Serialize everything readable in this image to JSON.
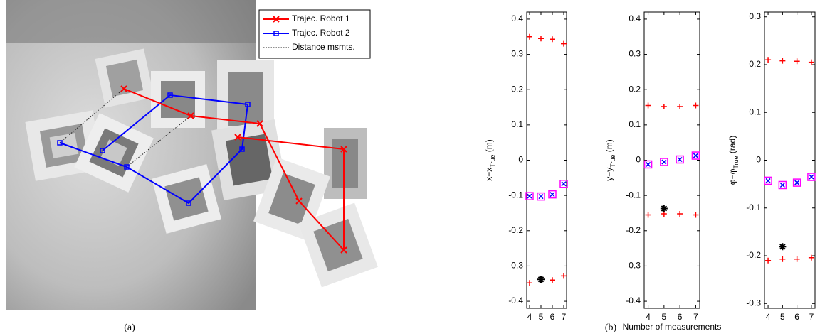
{
  "figure_a": {
    "legend": [
      "Trajec. Robot 1",
      "Trajec. Robot 2",
      "Distance msmts."
    ],
    "caption": "(a)"
  },
  "caption_b": "(b)",
  "chart_data": [
    {
      "type": "scatter",
      "ylabel": [
        "x−x",
        "True",
        " (m)"
      ],
      "xlim": [
        3.75,
        7.25
      ],
      "xticks": [
        4,
        5,
        6,
        7
      ],
      "ylim": [
        -0.42,
        0.42
      ],
      "yticks": [
        -0.4,
        -0.3,
        -0.2,
        -0.1,
        0,
        0.1,
        0.2,
        0.3,
        0.4
      ],
      "series": [
        {
          "color": "#ff0000",
          "marker": "plus",
          "x": [
            4,
            5,
            6,
            7
          ],
          "values": [
            0.35,
            0.345,
            0.343,
            0.33
          ]
        },
        {
          "color": "#ff0000",
          "marker": "plus",
          "x": [
            4,
            5,
            6,
            7
          ],
          "values": [
            -0.348,
            -0.338,
            -0.34,
            -0.328
          ]
        },
        {
          "color": "#ff00ff",
          "marker": "square",
          "x": [
            4,
            5,
            6,
            7
          ],
          "values": [
            -0.102,
            -0.103,
            -0.097,
            -0.067
          ]
        },
        {
          "color": "#0000ff",
          "marker": "cross",
          "x": [
            4,
            5,
            6,
            7
          ],
          "values": [
            -0.102,
            -0.103,
            -0.097,
            -0.067
          ]
        },
        {
          "color": "#000000",
          "marker": "star",
          "x": [
            5
          ],
          "values": [
            -0.338
          ]
        }
      ]
    },
    {
      "type": "scatter",
      "ylabel": [
        "y−y",
        "True",
        " (m)"
      ],
      "xlabel": "Number of measurements",
      "xlim": [
        3.75,
        7.25
      ],
      "xticks": [
        4,
        5,
        6,
        7
      ],
      "ylim": [
        -0.42,
        0.42
      ],
      "yticks": [
        -0.4,
        -0.3,
        -0.2,
        -0.1,
        0,
        0.1,
        0.2,
        0.3,
        0.4
      ],
      "series": [
        {
          "color": "#ff0000",
          "marker": "plus",
          "x": [
            4,
            5,
            6,
            7
          ],
          "values": [
            0.155,
            0.152,
            0.152,
            0.155
          ]
        },
        {
          "color": "#ff0000",
          "marker": "plus",
          "x": [
            4,
            5,
            6,
            7
          ],
          "values": [
            -0.155,
            -0.152,
            -0.152,
            -0.155
          ]
        },
        {
          "color": "#ff00ff",
          "marker": "square",
          "x": [
            4,
            5,
            6,
            7
          ],
          "values": [
            -0.012,
            -0.005,
            0.002,
            0.013
          ]
        },
        {
          "color": "#0000ff",
          "marker": "cross",
          "x": [
            4,
            5,
            6,
            7
          ],
          "values": [
            -0.012,
            -0.005,
            0.002,
            0.013
          ]
        },
        {
          "color": "#000000",
          "marker": "star",
          "x": [
            5
          ],
          "values": [
            -0.137
          ]
        }
      ]
    },
    {
      "type": "scatter",
      "ylabel": [
        "φ−φ",
        "True",
        " (rad)"
      ],
      "xlim": [
        3.75,
        7.25
      ],
      "xticks": [
        4,
        5,
        6,
        7
      ],
      "ylim": [
        -0.31,
        0.31
      ],
      "yticks": [
        -0.3,
        -0.2,
        -0.1,
        0,
        0.1,
        0.2,
        0.3
      ],
      "series": [
        {
          "color": "#ff0000",
          "marker": "plus",
          "x": [
            4,
            5,
            6,
            7
          ],
          "values": [
            0.21,
            0.208,
            0.207,
            0.205
          ]
        },
        {
          "color": "#ff0000",
          "marker": "plus",
          "x": [
            4,
            5,
            6,
            7
          ],
          "values": [
            -0.21,
            -0.207,
            -0.207,
            -0.204
          ]
        },
        {
          "color": "#ff00ff",
          "marker": "square",
          "x": [
            4,
            5,
            6,
            7
          ],
          "values": [
            -0.043,
            -0.052,
            -0.047,
            -0.035
          ]
        },
        {
          "color": "#0000ff",
          "marker": "cross",
          "x": [
            4,
            5,
            6,
            7
          ],
          "values": [
            -0.043,
            -0.052,
            -0.047,
            -0.035
          ]
        },
        {
          "color": "#000000",
          "marker": "star",
          "x": [
            5
          ],
          "values": [
            -0.181
          ]
        }
      ]
    }
  ]
}
